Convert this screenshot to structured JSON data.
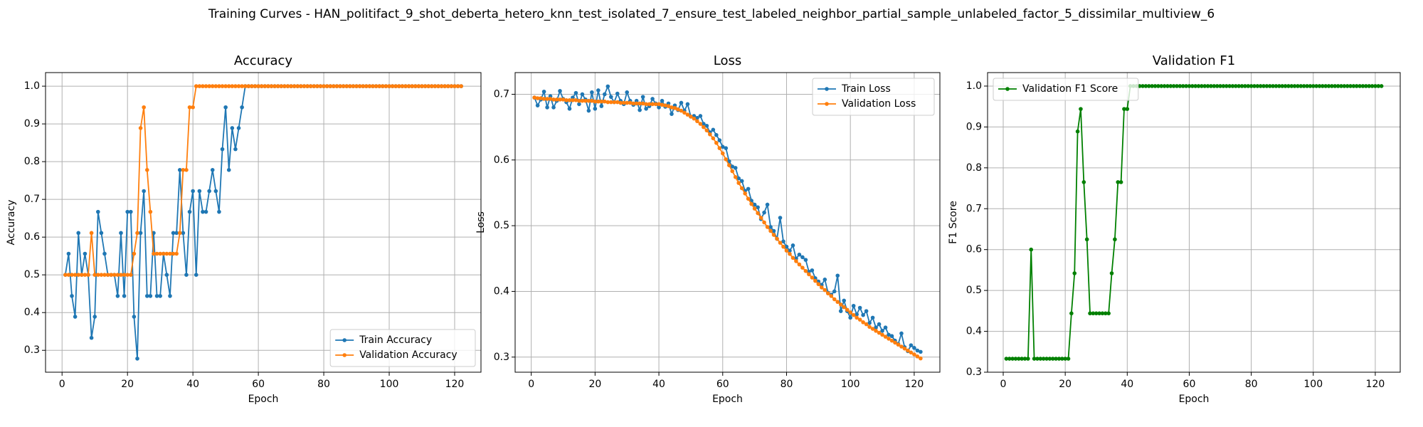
{
  "title": "Training Curves - HAN_politifact_9_shot_deberta_hetero_knn_test_isolated_7_ensure_test_labeled_neighbor_partial_sample_unlabeled_factor_5_dissimilar_multiview_6",
  "chart_data": [
    {
      "type": "line",
      "title": "Accuracy",
      "x_label": "Epoch",
      "y_label": "Accuracy",
      "x": [
        1,
        2,
        3,
        4,
        5,
        6,
        7,
        8,
        9,
        10,
        11,
        12,
        13,
        14,
        15,
        16,
        17,
        18,
        19,
        20,
        21,
        22,
        23,
        24,
        25,
        26,
        27,
        28,
        29,
        30,
        31,
        32,
        33,
        34,
        35,
        36,
        37,
        38,
        39,
        40,
        41,
        42,
        43,
        44,
        45,
        46,
        47,
        48,
        49,
        50,
        51,
        52,
        53,
        54,
        55,
        56,
        57,
        58,
        59,
        60,
        61,
        62,
        63,
        64,
        65,
        66,
        67,
        68,
        69,
        70,
        71,
        72,
        73,
        74,
        75,
        76,
        77,
        78,
        79,
        80,
        81,
        82,
        83,
        84,
        85,
        86,
        87,
        88,
        89,
        90,
        91,
        92,
        93,
        94,
        95,
        96,
        97,
        98,
        99,
        100,
        101,
        102,
        103,
        104,
        105,
        106,
        107,
        108,
        109,
        110,
        111,
        112,
        113,
        114,
        115,
        116,
        117,
        118,
        119,
        120,
        121,
        122
      ],
      "series": [
        {
          "name": "Train Accuracy",
          "color": "#1f77b4",
          "values": [
            0.5,
            0.556,
            0.444,
            0.389,
            0.611,
            0.5,
            0.556,
            0.5,
            0.333,
            0.389,
            0.667,
            0.611,
            0.556,
            0.5,
            0.5,
            0.5,
            0.444,
            0.611,
            0.444,
            0.667,
            0.667,
            0.389,
            0.278,
            0.611,
            0.722,
            0.444,
            0.444,
            0.611,
            0.444,
            0.444,
            0.556,
            0.5,
            0.444,
            0.611,
            0.611,
            0.778,
            0.611,
            0.5,
            0.667,
            0.722,
            0.5,
            0.722,
            0.667,
            0.667,
            0.722,
            0.778,
            0.722,
            0.667,
            0.833,
            0.944,
            0.778,
            0.889,
            0.833,
            0.889,
            0.944,
            1.0,
            1.0,
            1.0,
            1.0,
            1.0,
            1.0,
            1.0,
            1.0,
            1.0,
            1.0,
            1.0,
            1.0,
            1.0,
            1.0,
            1.0,
            1.0,
            1.0,
            1.0,
            1.0,
            1.0,
            1.0,
            1.0,
            1.0,
            1.0,
            1.0,
            1.0,
            1.0,
            1.0,
            1.0,
            1.0,
            1.0,
            1.0,
            1.0,
            1.0,
            1.0,
            1.0,
            1.0,
            1.0,
            1.0,
            1.0,
            1.0,
            1.0,
            1.0,
            1.0,
            1.0,
            1.0,
            1.0,
            1.0,
            1.0,
            1.0,
            1.0,
            1.0,
            1.0,
            1.0,
            1.0,
            1.0,
            1.0,
            1.0,
            1.0,
            1.0,
            1.0,
            1.0,
            1.0,
            1.0,
            1.0,
            1.0,
            1.0
          ]
        },
        {
          "name": "Validation Accuracy",
          "color": "#ff7f0e",
          "values": [
            0.5,
            0.5,
            0.5,
            0.5,
            0.5,
            0.5,
            0.5,
            0.5,
            0.611,
            0.5,
            0.5,
            0.5,
            0.5,
            0.5,
            0.5,
            0.5,
            0.5,
            0.5,
            0.5,
            0.5,
            0.5,
            0.556,
            0.611,
            0.889,
            0.944,
            0.778,
            0.667,
            0.556,
            0.556,
            0.556,
            0.556,
            0.556,
            0.556,
            0.556,
            0.556,
            0.611,
            0.778,
            0.778,
            0.944,
            0.944,
            1.0,
            1.0,
            1.0,
            1.0,
            1.0,
            1.0,
            1.0,
            1.0,
            1.0,
            1.0,
            1.0,
            1.0,
            1.0,
            1.0,
            1.0,
            1.0,
            1.0,
            1.0,
            1.0,
            1.0,
            1.0,
            1.0,
            1.0,
            1.0,
            1.0,
            1.0,
            1.0,
            1.0,
            1.0,
            1.0,
            1.0,
            1.0,
            1.0,
            1.0,
            1.0,
            1.0,
            1.0,
            1.0,
            1.0,
            1.0,
            1.0,
            1.0,
            1.0,
            1.0,
            1.0,
            1.0,
            1.0,
            1.0,
            1.0,
            1.0,
            1.0,
            1.0,
            1.0,
            1.0,
            1.0,
            1.0,
            1.0,
            1.0,
            1.0,
            1.0,
            1.0,
            1.0,
            1.0,
            1.0,
            1.0,
            1.0,
            1.0,
            1.0,
            1.0,
            1.0,
            1.0,
            1.0,
            1.0,
            1.0,
            1.0,
            1.0,
            1.0,
            1.0,
            1.0,
            1.0,
            1.0,
            1.0
          ]
        }
      ],
      "xlim": [
        -5.05,
        128.05
      ],
      "xticks": [
        0,
        20,
        40,
        60,
        80,
        100,
        120
      ],
      "ylim": [
        0.242,
        1.036
      ],
      "yticks": [
        0.3,
        0.4,
        0.5,
        0.6,
        0.7,
        0.8,
        0.9,
        {
          "value": 1.0,
          "label": "1.0"
        }
      ],
      "grid": true,
      "legend": "lower right"
    },
    {
      "type": "line",
      "title": "Loss",
      "x_label": "Epoch",
      "y_label": "Loss",
      "x": [
        1,
        2,
        3,
        4,
        5,
        6,
        7,
        8,
        9,
        10,
        11,
        12,
        13,
        14,
        15,
        16,
        17,
        18,
        19,
        20,
        21,
        22,
        23,
        24,
        25,
        26,
        27,
        28,
        29,
        30,
        31,
        32,
        33,
        34,
        35,
        36,
        37,
        38,
        39,
        40,
        41,
        42,
        43,
        44,
        45,
        46,
        47,
        48,
        49,
        50,
        51,
        52,
        53,
        54,
        55,
        56,
        57,
        58,
        59,
        60,
        61,
        62,
        63,
        64,
        65,
        66,
        67,
        68,
        69,
        70,
        71,
        72,
        73,
        74,
        75,
        76,
        77,
        78,
        79,
        80,
        81,
        82,
        83,
        84,
        85,
        86,
        87,
        88,
        89,
        90,
        91,
        92,
        93,
        94,
        95,
        96,
        97,
        98,
        99,
        100,
        101,
        102,
        103,
        104,
        105,
        106,
        107,
        108,
        109,
        110,
        111,
        112,
        113,
        114,
        115,
        116,
        117,
        118,
        119,
        120,
        121,
        122
      ],
      "series": [
        {
          "name": "Train Loss",
          "color": "#1f77b4",
          "values": [
            0.695,
            0.683,
            0.692,
            0.704,
            0.68,
            0.697,
            0.68,
            0.69,
            0.705,
            0.693,
            0.688,
            0.678,
            0.695,
            0.702,
            0.685,
            0.7,
            0.692,
            0.675,
            0.703,
            0.678,
            0.706,
            0.682,
            0.7,
            0.712,
            0.696,
            0.688,
            0.701,
            0.69,
            0.685,
            0.703,
            0.69,
            0.684,
            0.69,
            0.676,
            0.696,
            0.678,
            0.682,
            0.693,
            0.686,
            0.68,
            0.69,
            0.681,
            0.686,
            0.67,
            0.683,
            0.676,
            0.687,
            0.675,
            0.685,
            0.666,
            0.667,
            0.664,
            0.667,
            0.655,
            0.652,
            0.642,
            0.646,
            0.638,
            0.63,
            0.62,
            0.618,
            0.598,
            0.59,
            0.588,
            0.572,
            0.568,
            0.553,
            0.556,
            0.538,
            0.532,
            0.528,
            0.51,
            0.52,
            0.532,
            0.498,
            0.492,
            0.48,
            0.512,
            0.476,
            0.468,
            0.462,
            0.47,
            0.45,
            0.456,
            0.452,
            0.448,
            0.43,
            0.432,
            0.42,
            0.415,
            0.41,
            0.418,
            0.398,
            0.395,
            0.4,
            0.424,
            0.37,
            0.386,
            0.37,
            0.36,
            0.378,
            0.365,
            0.375,
            0.364,
            0.37,
            0.352,
            0.36,
            0.345,
            0.35,
            0.34,
            0.345,
            0.334,
            0.332,
            0.325,
            0.32,
            0.336,
            0.315,
            0.309,
            0.318,
            0.314,
            0.31,
            0.308
          ]
        },
        {
          "name": "Validation Loss",
          "color": "#ff7f0e",
          "values": [
            0.695,
            0.694,
            0.694,
            0.693,
            0.693,
            0.693,
            0.692,
            0.692,
            0.692,
            0.692,
            0.691,
            0.691,
            0.691,
            0.691,
            0.69,
            0.69,
            0.69,
            0.69,
            0.69,
            0.689,
            0.689,
            0.689,
            0.689,
            0.688,
            0.688,
            0.688,
            0.688,
            0.687,
            0.687,
            0.687,
            0.687,
            0.686,
            0.686,
            0.686,
            0.686,
            0.685,
            0.685,
            0.685,
            0.685,
            0.685,
            0.684,
            0.683,
            0.682,
            0.68,
            0.679,
            0.677,
            0.675,
            0.672,
            0.669,
            0.666,
            0.663,
            0.659,
            0.655,
            0.65,
            0.645,
            0.639,
            0.633,
            0.626,
            0.618,
            0.61,
            0.601,
            0.592,
            0.583,
            0.574,
            0.565,
            0.557,
            0.549,
            0.541,
            0.533,
            0.526,
            0.519,
            0.512,
            0.505,
            0.498,
            0.492,
            0.486,
            0.48,
            0.474,
            0.468,
            0.462,
            0.457,
            0.451,
            0.446,
            0.441,
            0.436,
            0.431,
            0.426,
            0.421,
            0.416,
            0.411,
            0.406,
            0.402,
            0.397,
            0.393,
            0.388,
            0.384,
            0.38,
            0.376,
            0.372,
            0.368,
            0.364,
            0.36,
            0.357,
            0.353,
            0.35,
            0.346,
            0.343,
            0.34,
            0.337,
            0.334,
            0.331,
            0.328,
            0.325,
            0.322,
            0.319,
            0.316,
            0.313,
            0.31,
            0.307,
            0.304,
            0.301,
            0.298
          ]
        }
      ],
      "xlim": [
        -5.05,
        128.05
      ],
      "xticks": [
        0,
        20,
        40,
        60,
        80,
        100,
        120
      ],
      "ylim": [
        0.277,
        0.733
      ],
      "yticks": [
        0.3,
        0.4,
        0.5,
        0.6,
        0.7
      ],
      "grid": true,
      "legend": "upper right"
    },
    {
      "type": "line",
      "title": "Validation F1",
      "x_label": "Epoch",
      "y_label": "F1 Score",
      "x": [
        1,
        2,
        3,
        4,
        5,
        6,
        7,
        8,
        9,
        10,
        11,
        12,
        13,
        14,
        15,
        16,
        17,
        18,
        19,
        20,
        21,
        22,
        23,
        24,
        25,
        26,
        27,
        28,
        29,
        30,
        31,
        32,
        33,
        34,
        35,
        36,
        37,
        38,
        39,
        40,
        41,
        42,
        43,
        44,
        45,
        46,
        47,
        48,
        49,
        50,
        51,
        52,
        53,
        54,
        55,
        56,
        57,
        58,
        59,
        60,
        61,
        62,
        63,
        64,
        65,
        66,
        67,
        68,
        69,
        70,
        71,
        72,
        73,
        74,
        75,
        76,
        77,
        78,
        79,
        80,
        81,
        82,
        83,
        84,
        85,
        86,
        87,
        88,
        89,
        90,
        91,
        92,
        93,
        94,
        95,
        96,
        97,
        98,
        99,
        100,
        101,
        102,
        103,
        104,
        105,
        106,
        107,
        108,
        109,
        110,
        111,
        112,
        113,
        114,
        115,
        116,
        117,
        118,
        119,
        120,
        121,
        122
      ],
      "series": [
        {
          "name": "Validation F1 Score",
          "color": "#008000",
          "values": [
            0.333,
            0.333,
            0.333,
            0.333,
            0.333,
            0.333,
            0.333,
            0.333,
            0.6,
            0.333,
            0.333,
            0.333,
            0.333,
            0.333,
            0.333,
            0.333,
            0.333,
            0.333,
            0.333,
            0.333,
            0.333,
            0.444,
            0.542,
            0.889,
            0.944,
            0.765,
            0.625,
            0.444,
            0.444,
            0.444,
            0.444,
            0.444,
            0.444,
            0.444,
            0.542,
            0.625,
            0.765,
            0.765,
            0.944,
            0.944,
            1.0,
            1.0,
            1.0,
            1.0,
            1.0,
            1.0,
            1.0,
            1.0,
            1.0,
            1.0,
            1.0,
            1.0,
            1.0,
            1.0,
            1.0,
            1.0,
            1.0,
            1.0,
            1.0,
            1.0,
            1.0,
            1.0,
            1.0,
            1.0,
            1.0,
            1.0,
            1.0,
            1.0,
            1.0,
            1.0,
            1.0,
            1.0,
            1.0,
            1.0,
            1.0,
            1.0,
            1.0,
            1.0,
            1.0,
            1.0,
            1.0,
            1.0,
            1.0,
            1.0,
            1.0,
            1.0,
            1.0,
            1.0,
            1.0,
            1.0,
            1.0,
            1.0,
            1.0,
            1.0,
            1.0,
            1.0,
            1.0,
            1.0,
            1.0,
            1.0,
            1.0,
            1.0,
            1.0,
            1.0,
            1.0,
            1.0,
            1.0,
            1.0,
            1.0,
            1.0,
            1.0,
            1.0,
            1.0,
            1.0,
            1.0,
            1.0,
            1.0,
            1.0,
            1.0,
            1.0,
            1.0,
            1.0
          ]
        }
      ],
      "xlim": [
        -5.05,
        128.05
      ],
      "xticks": [
        0,
        20,
        40,
        60,
        80,
        100,
        120
      ],
      "ylim": [
        0.3,
        1.033
      ],
      "yticks": [
        0.3,
        0.4,
        0.5,
        0.6,
        0.7,
        0.8,
        0.9,
        {
          "value": 1.0,
          "label": "1.0"
        }
      ],
      "grid": true,
      "legend": "upper left"
    }
  ]
}
